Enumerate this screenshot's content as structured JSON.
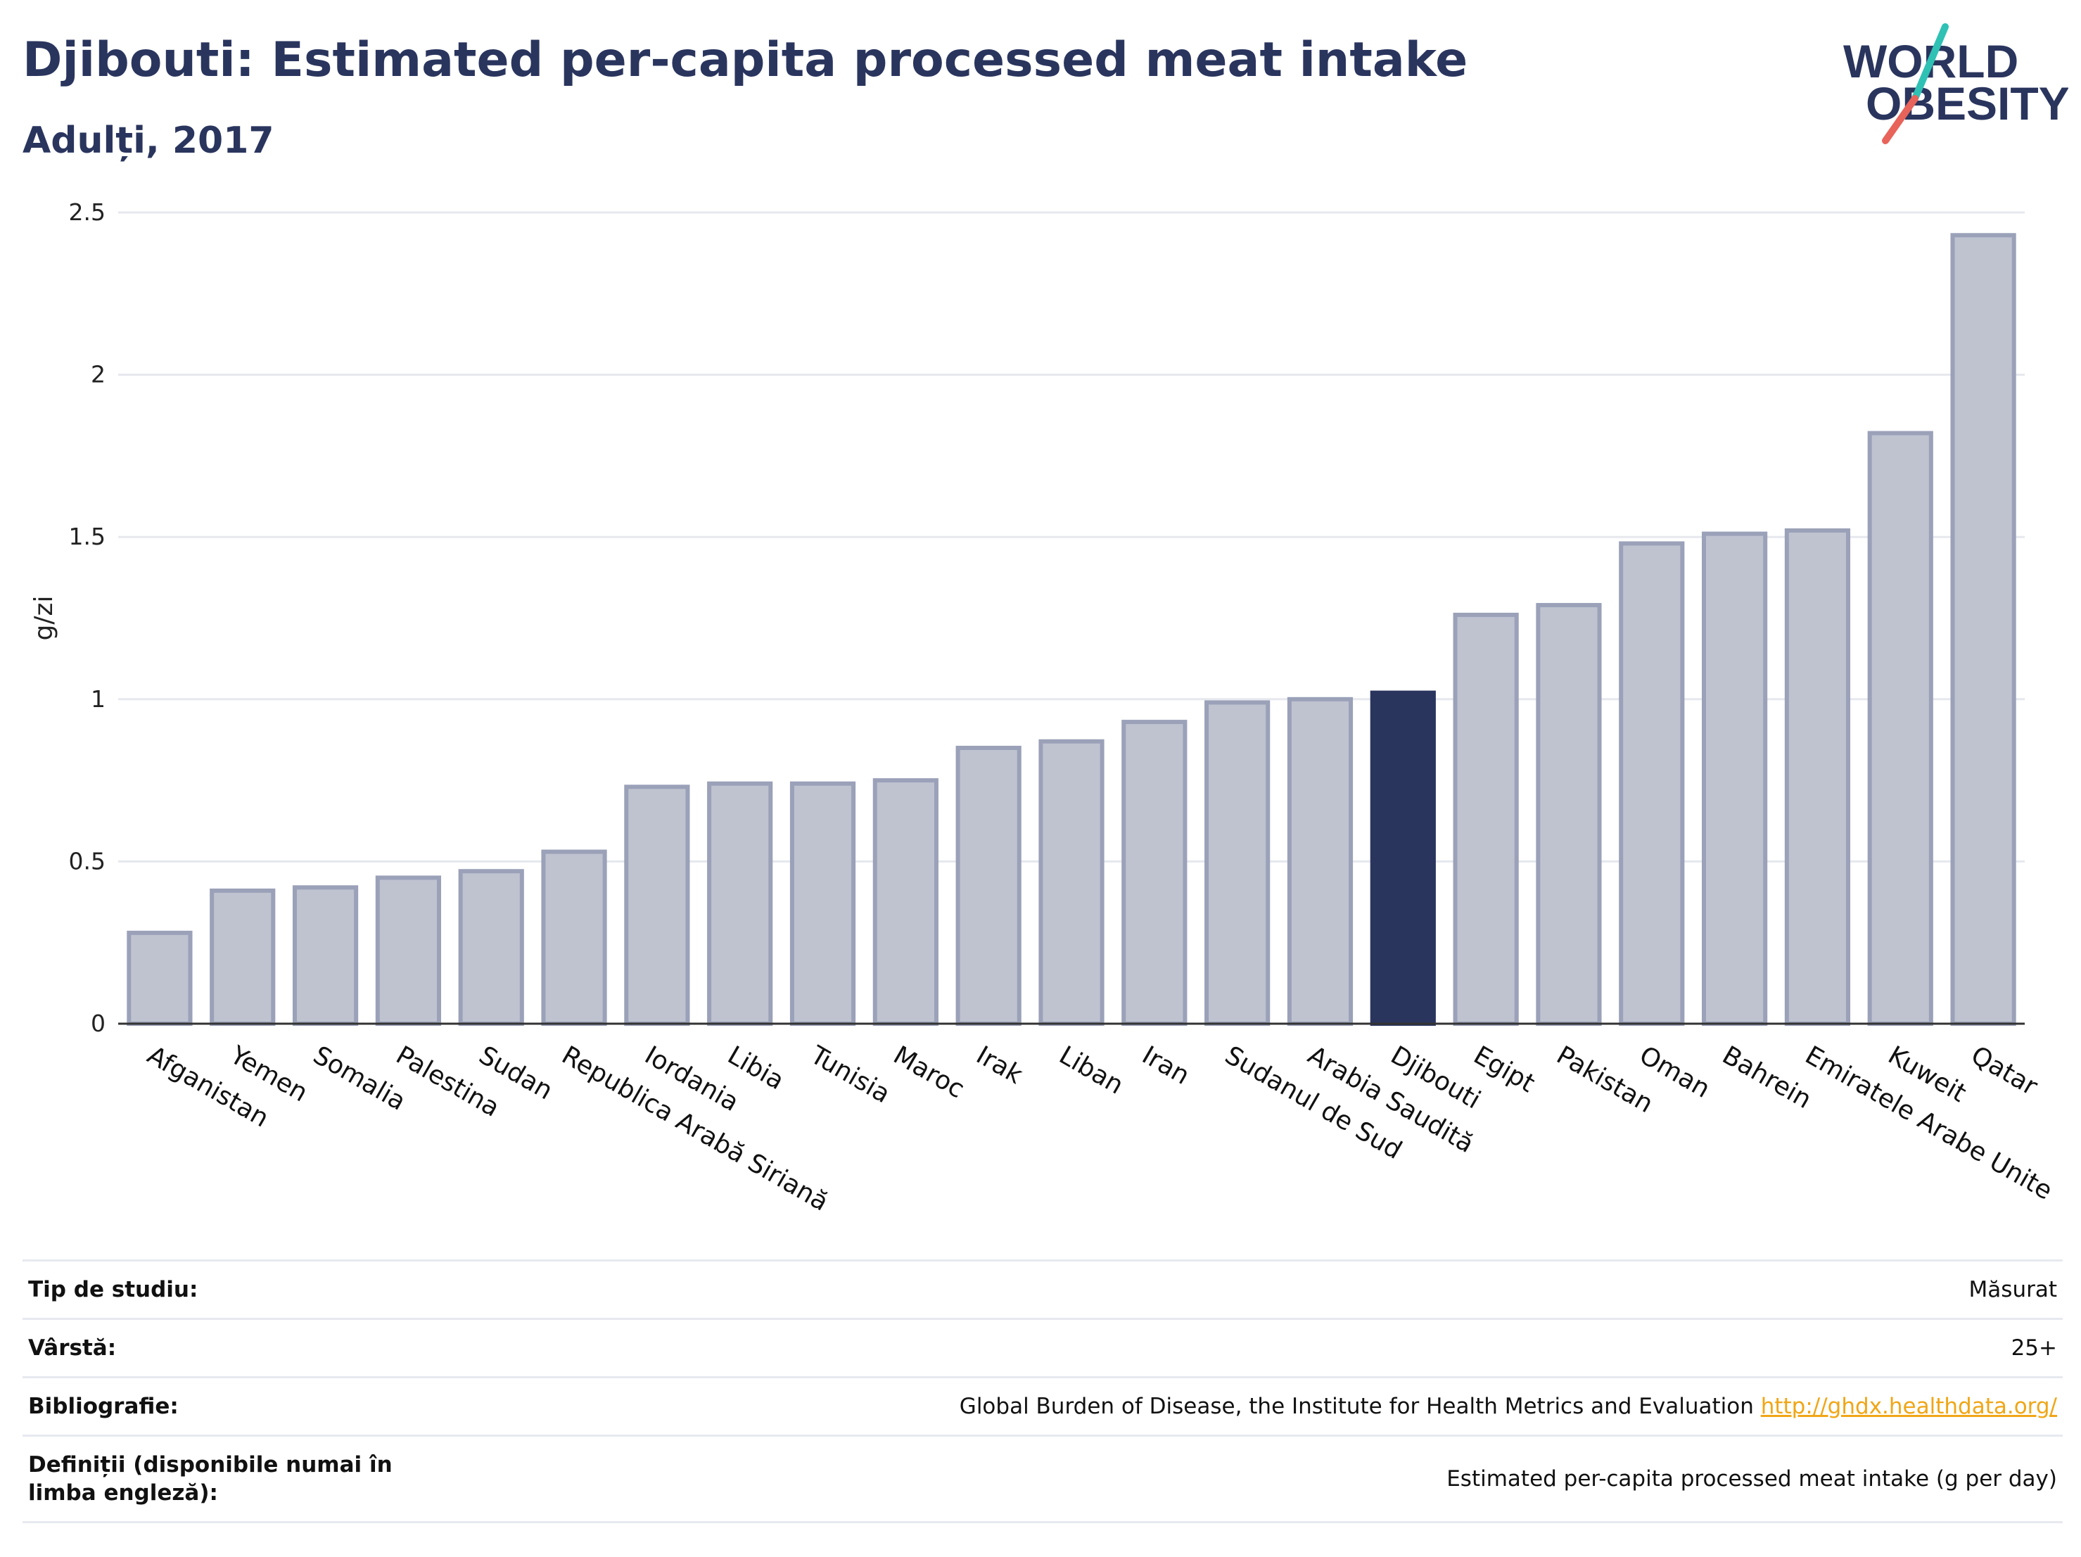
{
  "header": {
    "title": "Djibouti: Estimated per-capita processed meat intake",
    "subtitle": "Adulți, 2017"
  },
  "logo": {
    "line1": "WORLD",
    "line2": "OBESITY"
  },
  "chart_data": {
    "type": "bar",
    "ylabel": "g/zi",
    "ylim": [
      0,
      2.5
    ],
    "yticks": [
      "0",
      "0.5",
      "1",
      "1.5",
      "2",
      "2.5"
    ],
    "grid": true,
    "categories": [
      "Afganistan",
      "Yemen",
      "Somalia",
      "Palestina",
      "Sudan",
      "Republica Arabă Siriană",
      "Iordania",
      "Libia",
      "Tunisia",
      "Maroc",
      "Irak",
      "Liban",
      "Iran",
      "Sudanul de Sud",
      "Arabia Saudită",
      "Djibouti",
      "Egipt",
      "Pakistan",
      "Oman",
      "Bahrein",
      "Emiratele Arabe Unite",
      "Kuweit",
      "Qatar"
    ],
    "values": [
      0.28,
      0.41,
      0.42,
      0.45,
      0.47,
      0.53,
      0.73,
      0.74,
      0.74,
      0.75,
      0.85,
      0.87,
      0.93,
      0.99,
      1.0,
      1.02,
      1.26,
      1.29,
      1.48,
      1.51,
      1.52,
      1.82,
      2.43
    ],
    "highlight": "Djibouti",
    "colors": {
      "bar": "#bfc3d0",
      "bar_edge": "#9aa1b8",
      "highlight": "#2a355e",
      "grid": "#e6e8ee",
      "axis": "#333333"
    }
  },
  "info_table": [
    {
      "label": "Tip de studiu:",
      "value": "Măsurat"
    },
    {
      "label": "Vârstă:",
      "value": "25+"
    },
    {
      "label": "Bibliografie:",
      "value": "Global Burden of Disease, the Institute for Health Metrics and Evaluation",
      "link": "http://ghdx.healthdata.org/"
    },
    {
      "label": "Definiții (disponibile numai în limba engleză):",
      "value": "Estimated per-capita processed meat intake (g per day)"
    }
  ]
}
